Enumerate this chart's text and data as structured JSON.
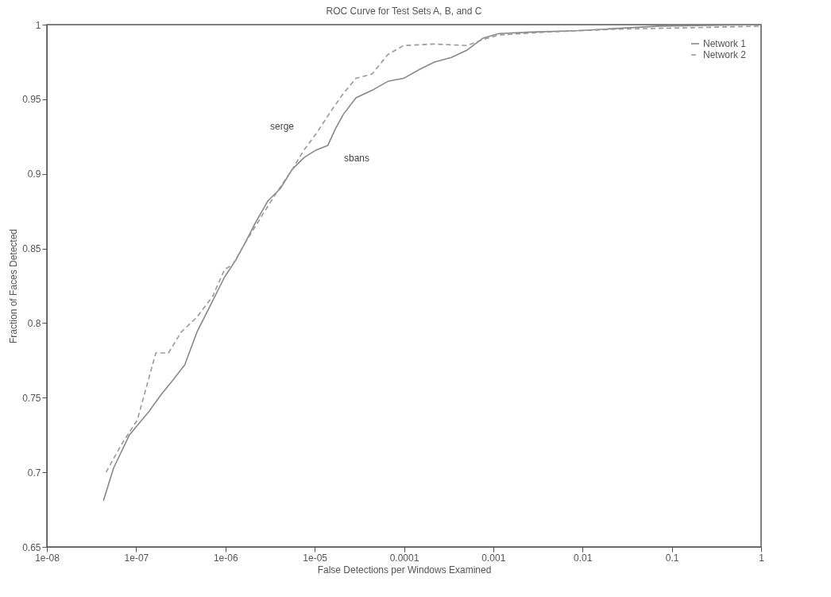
{
  "chart_data": {
    "type": "line",
    "title": "ROC Curve for Test Sets A, B, and C",
    "xlabel": "False Detections per Windows Examined",
    "ylabel": "Fraction of Faces Detected",
    "log": "x",
    "legend": "top right",
    "grid": false,
    "xlim": [
      1e-08,
      1
    ],
    "xticks": [
      {
        "value": 1e-08,
        "label": "1e-08"
      },
      {
        "value": 1e-07,
        "label": "1e-07"
      },
      {
        "value": 1e-06,
        "label": "1e-06"
      },
      {
        "value": 1e-05,
        "label": "1e-05"
      },
      0.0001,
      0.001,
      0.01,
      0.1,
      1
    ],
    "ylim": [
      0.65,
      1
    ],
    "yticks": [
      0.65,
      0.7,
      0.75,
      0.8,
      0.85,
      0.9,
      0.95,
      1
    ],
    "annotations": [
      "serge",
      "sbans"
    ],
    "series": [
      {
        "name": "Network 1",
        "color": "#888888",
        "line_style": "solid",
        "x": [
          4.3e-08,
          5.6e-08,
          8.4e-08,
          1.4e-07,
          1.9e-07,
          2.6e-07,
          3.5e-07,
          4.8e-07,
          7.2e-07,
          9.8e-07,
          1.3e-06,
          1.6e-06,
          2.2e-06,
          3e-06,
          4.1e-06,
          5.6e-06,
          7.6e-06,
          1.04e-05,
          1.4e-05,
          1.7e-05,
          2.1e-05,
          2.9e-05,
          4.4e-05,
          6.6e-05,
          9.9e-05,
          0.00015,
          0.00022,
          0.00034,
          0.00051,
          0.00077,
          0.00115,
          0.0026,
          0.009,
          0.07,
          1
        ],
        "values": [
          0.681,
          0.703,
          0.725,
          0.741,
          0.752,
          0.762,
          0.772,
          0.794,
          0.815,
          0.831,
          0.842,
          0.852,
          0.868,
          0.882,
          0.89,
          0.903,
          0.911,
          0.916,
          0.919,
          0.93,
          0.94,
          0.951,
          0.956,
          0.962,
          0.964,
          0.97,
          0.975,
          0.978,
          0.983,
          0.991,
          0.994,
          0.995,
          0.996,
          0.999,
          1
        ]
      },
      {
        "name": "Network 2",
        "color": "#999999",
        "line_style": "dashed",
        "x": [
          4.6e-08,
          6.9e-08,
          1.03e-07,
          1.66e-07,
          2.3e-07,
          3.2e-07,
          4.8e-07,
          7.2e-07,
          9.8e-07,
          1.2e-06,
          1.6e-06,
          2.5e-06,
          3.7e-06,
          5.6e-06,
          7.6e-06,
          1.04e-05,
          1.56e-05,
          2.1e-05,
          2.9e-05,
          4.4e-05,
          6.6e-05,
          9.9e-05,
          0.00022,
          0.00051,
          0.00077,
          0.00115,
          0.0039,
          0.025,
          0.19,
          1
        ],
        "values": [
          0.7,
          0.719,
          0.735,
          0.78,
          0.78,
          0.794,
          0.804,
          0.818,
          0.836,
          0.839,
          0.852,
          0.871,
          0.887,
          0.903,
          0.916,
          0.927,
          0.943,
          0.954,
          0.964,
          0.967,
          0.98,
          0.986,
          0.987,
          0.986,
          0.99,
          0.993,
          0.995,
          0.997,
          0.998,
          0.999
        ]
      }
    ]
  }
}
